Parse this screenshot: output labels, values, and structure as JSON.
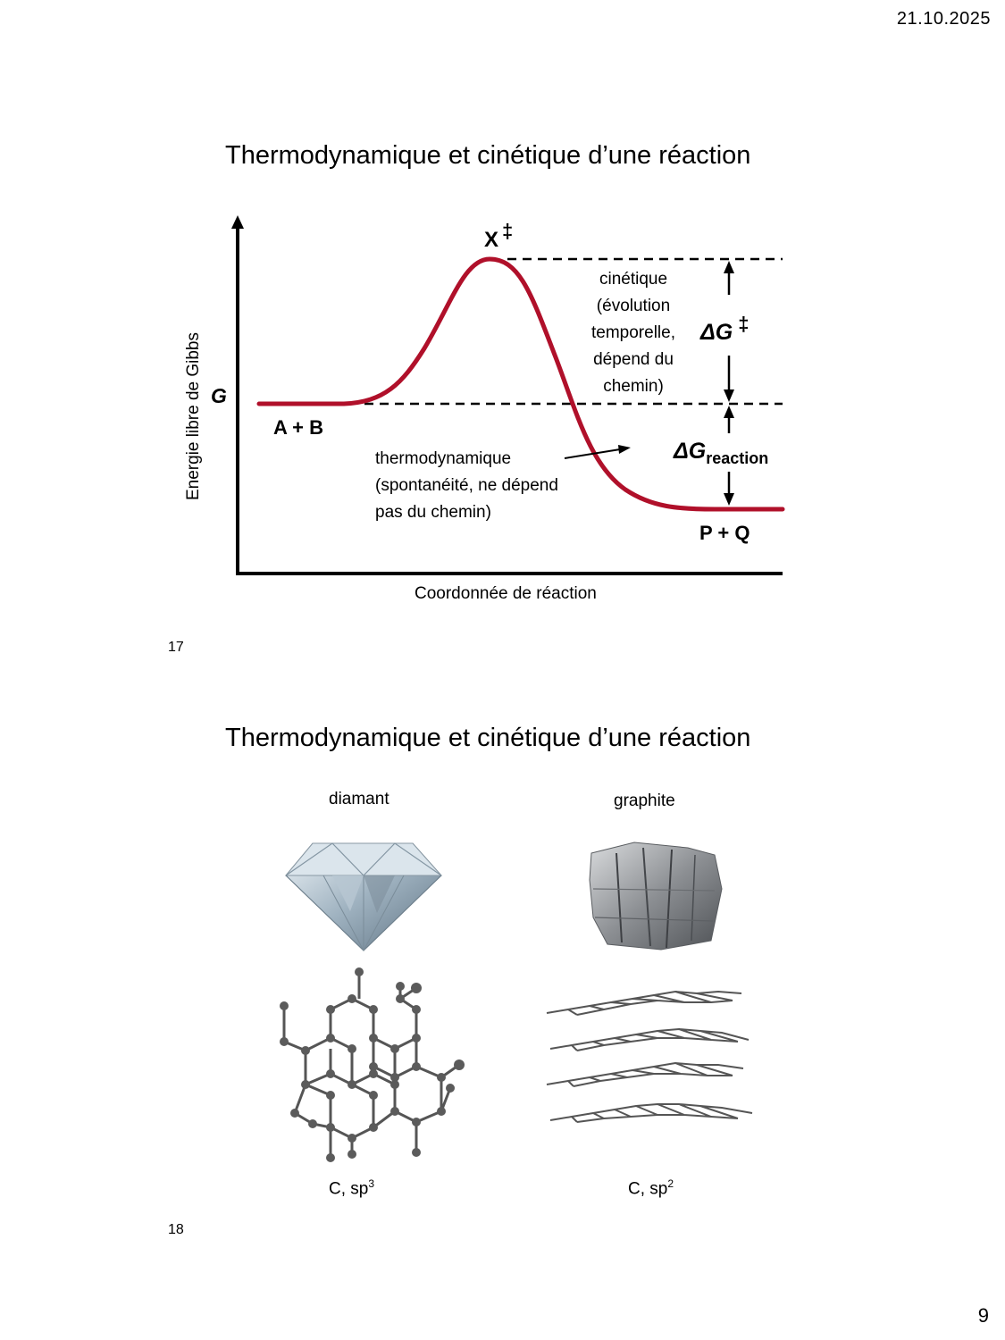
{
  "header": {
    "date": "21.10.2025"
  },
  "slide17": {
    "title": "Thermodynamique et cinétique d’une réaction",
    "number": "17",
    "diagram": {
      "ylabel": "Energie libre de Gibbs",
      "xlabel": "Coordonnée de réaction",
      "g_label": "G",
      "reactants": "A + B",
      "products": "P + Q",
      "transition_state": "X",
      "double_dagger": "‡",
      "delta_g_activation_prefix": "ΔG",
      "delta_g_reaction_prefix": "ΔG",
      "delta_g_reaction_sub": "reaction",
      "kinetics_note": [
        "cinétique",
        "(évolution",
        "temporelle,",
        "dépend du",
        "chemin)"
      ],
      "thermo_note": [
        "thermodynamique",
        "(spontanéité, ne dépend",
        "pas du chemin)"
      ],
      "curve_color": "#b0102a"
    }
  },
  "slide18": {
    "title": "Thermodynamique et cinétique d’une réaction",
    "number": "18",
    "left": {
      "label": "diamant",
      "caption_prefix": "C, sp",
      "caption_sup": "3"
    },
    "right": {
      "label": "graphite",
      "caption_prefix": "C, sp",
      "caption_sup": "2"
    }
  },
  "footer": {
    "page": "9"
  }
}
